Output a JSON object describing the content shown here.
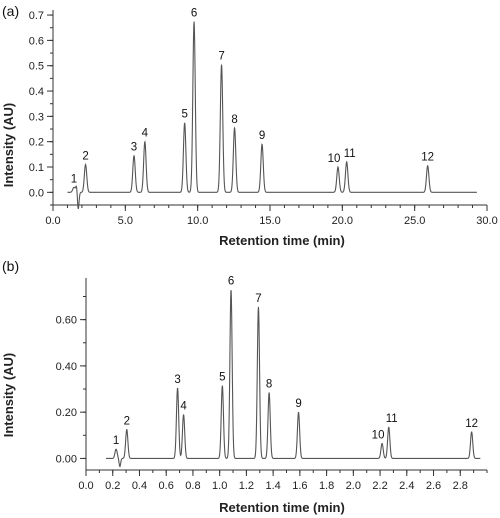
{
  "chart_data": [
    {
      "type": "line",
      "panel_label": "(a)",
      "xlabel": "Retention time (min)",
      "ylabel": "Intensity (AU)",
      "xlim": [
        0.0,
        30.0
      ],
      "ylim": [
        -0.05,
        0.72
      ],
      "x_ticks": [
        0,
        5,
        10,
        15,
        20,
        25,
        30
      ],
      "x_tick_labels": [
        "0.0",
        "5.0",
        "10.0",
        "15.0",
        "20.0",
        "25.0",
        "30.0"
      ],
      "x_minor_step": 1,
      "y_ticks": [
        0.0,
        0.1,
        0.2,
        0.3,
        0.4,
        0.5,
        0.6,
        0.7
      ],
      "y_tick_labels": [
        "0.0",
        "0.1",
        "0.2",
        "0.3",
        "0.4",
        "0.5",
        "0.6",
        "0.7"
      ],
      "y_minor_step": 0.05,
      "baseline": 0.0,
      "x_start": 1.0,
      "x_end": 29.3,
      "disturbance": {
        "x": 1.7,
        "up": 0.035,
        "down": -0.075
      },
      "peaks": [
        {
          "label": "1",
          "x": 1.45,
          "height": 0.02
        },
        {
          "label": "2",
          "x": 2.25,
          "height": 0.11
        },
        {
          "label": "3",
          "x": 5.6,
          "height": 0.145
        },
        {
          "label": "4",
          "x": 6.35,
          "height": 0.2
        },
        {
          "label": "5",
          "x": 9.1,
          "height": 0.275
        },
        {
          "label": "6",
          "x": 9.75,
          "height": 0.675
        },
        {
          "label": "7",
          "x": 11.65,
          "height": 0.505
        },
        {
          "label": "8",
          "x": 12.55,
          "height": 0.255
        },
        {
          "label": "9",
          "x": 14.45,
          "height": 0.19
        },
        {
          "label": "10",
          "x": 19.7,
          "height": 0.1
        },
        {
          "label": "11",
          "x": 20.3,
          "height": 0.12
        },
        {
          "label": "12",
          "x": 25.9,
          "height": 0.105
        }
      ]
    },
    {
      "type": "line",
      "panel_label": "(b)",
      "xlabel": "Retention time (min)",
      "ylabel": "Intensity (AU)",
      "xlim": [
        0.0,
        3.0
      ],
      "ylim": [
        -0.05,
        0.78
      ],
      "x_ticks": [
        0.0,
        0.2,
        0.4,
        0.6,
        0.8,
        1.0,
        1.2,
        1.4,
        1.6,
        1.8,
        2.0,
        2.2,
        2.4,
        2.6,
        2.8
      ],
      "x_tick_labels": [
        "0.0",
        "0.2",
        "0.4",
        "0.6",
        "0.8",
        "1.0",
        "1.2",
        "1.4",
        "1.6",
        "1.8",
        "2.0",
        "2.2",
        "2.4",
        "2.6",
        "2.8"
      ],
      "x_minor_step": 0.1,
      "y_ticks": [
        0.0,
        0.2,
        0.4,
        0.6
      ],
      "y_tick_labels": [
        "0.00",
        "0.20",
        "0.40",
        "0.60"
      ],
      "y_minor_step": 0.1,
      "baseline": 0.0,
      "x_start": 0.15,
      "x_end": 2.95,
      "disturbance": {
        "x": 0.25,
        "up": 0.0,
        "down": -0.035
      },
      "peaks": [
        {
          "label": "1",
          "x": 0.225,
          "height": 0.04
        },
        {
          "label": "2",
          "x": 0.305,
          "height": 0.125
        },
        {
          "label": "3",
          "x": 0.685,
          "height": 0.305
        },
        {
          "label": "4",
          "x": 0.73,
          "height": 0.19
        },
        {
          "label": "5",
          "x": 1.02,
          "height": 0.315
        },
        {
          "label": "6",
          "x": 1.085,
          "height": 0.73
        },
        {
          "label": "7",
          "x": 1.29,
          "height": 0.655
        },
        {
          "label": "8",
          "x": 1.37,
          "height": 0.285
        },
        {
          "label": "9",
          "x": 1.59,
          "height": 0.2
        },
        {
          "label": "10",
          "x": 2.215,
          "height": 0.065
        },
        {
          "label": "11",
          "x": 2.265,
          "height": 0.135
        },
        {
          "label": "12",
          "x": 2.885,
          "height": 0.115
        }
      ]
    }
  ]
}
